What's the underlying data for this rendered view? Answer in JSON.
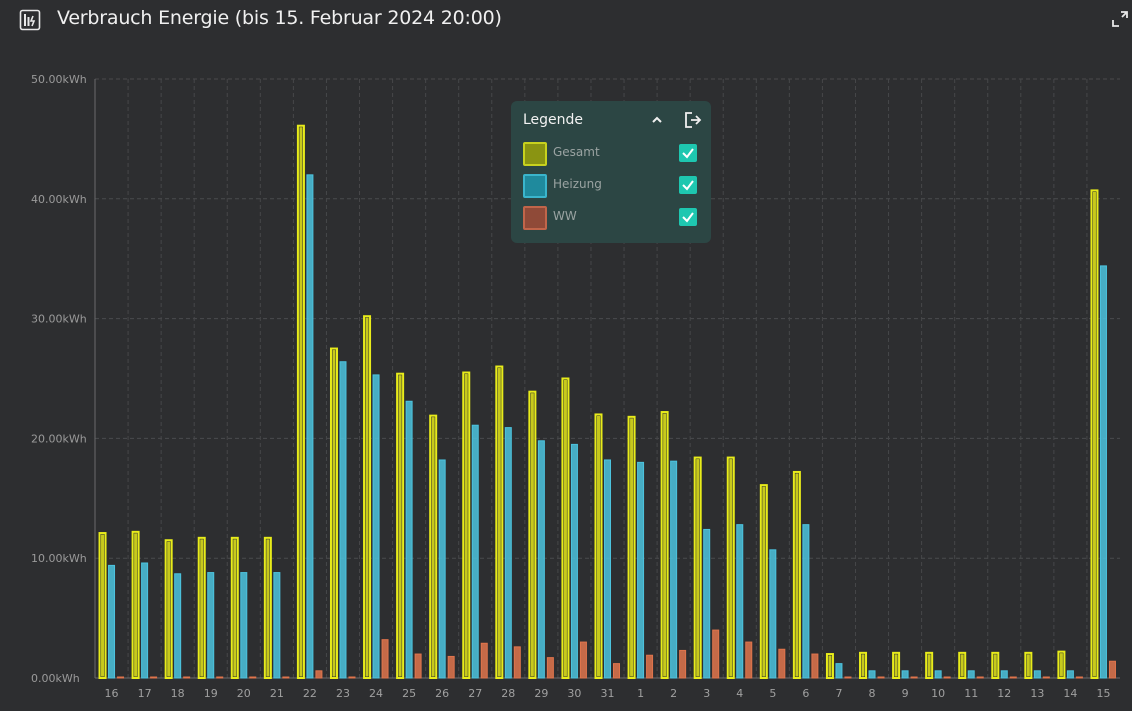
{
  "header": {
    "title": "Verbrauch Energie (bis 15. Februar 2024 20:00)",
    "icon": "building-energy-icon",
    "expand_icon": "expand-icon"
  },
  "legend": {
    "title": "Legende",
    "items": [
      {
        "label": "Gesamt",
        "color": "#c8d21e",
        "checked": true
      },
      {
        "label": "Heizung",
        "color": "#2fa8be",
        "checked": true
      },
      {
        "label": "WW",
        "color": "#c0654a",
        "checked": true
      }
    ]
  },
  "chart_data": {
    "type": "bar",
    "ylim": [
      0,
      50
    ],
    "yticks": [
      "0.00kWh",
      "10.00kWh",
      "20.00kWh",
      "30.00kWh",
      "40.00kWh",
      "50.00kWh"
    ],
    "grid": true,
    "legend_position": "top-center",
    "categories": [
      "16",
      "17",
      "18",
      "19",
      "20",
      "21",
      "22",
      "23",
      "24",
      "25",
      "26",
      "27",
      "28",
      "29",
      "30",
      "31",
      "1",
      "2",
      "3",
      "4",
      "5",
      "6",
      "7",
      "8",
      "9",
      "10",
      "11",
      "12",
      "13",
      "14",
      "15"
    ],
    "series": [
      {
        "name": "Gesamt",
        "color": "#e8ec1a",
        "values": [
          12.1,
          12.2,
          11.5,
          11.7,
          11.7,
          11.7,
          46.1,
          27.5,
          30.2,
          25.4,
          21.9,
          25.5,
          26.0,
          23.9,
          25.0,
          22.0,
          21.8,
          22.2,
          18.4,
          18.4,
          16.1,
          17.2,
          2.0,
          2.1,
          2.1,
          2.1,
          2.1,
          2.1,
          2.1,
          2.2,
          40.7
        ]
      },
      {
        "name": "Heizung",
        "color": "#4cc3de",
        "values": [
          9.4,
          9.6,
          8.7,
          8.8,
          8.8,
          8.8,
          42.0,
          26.4,
          25.3,
          23.1,
          18.2,
          21.1,
          20.9,
          19.8,
          19.5,
          18.2,
          18.0,
          18.1,
          12.4,
          12.8,
          10.7,
          12.8,
          1.2,
          0.6,
          0.6,
          0.6,
          0.6,
          0.6,
          0.6,
          0.6,
          34.4
        ]
      },
      {
        "name": "WW",
        "color": "#e0744c",
        "values": [
          0,
          0,
          0,
          0,
          0,
          0,
          0.6,
          0,
          3.2,
          2.0,
          1.8,
          2.9,
          2.6,
          1.7,
          3.0,
          1.2,
          1.9,
          2.3,
          4.0,
          3.0,
          2.4,
          2.0,
          0,
          0,
          0,
          0,
          0,
          0,
          0,
          0,
          1.4
        ]
      }
    ]
  }
}
